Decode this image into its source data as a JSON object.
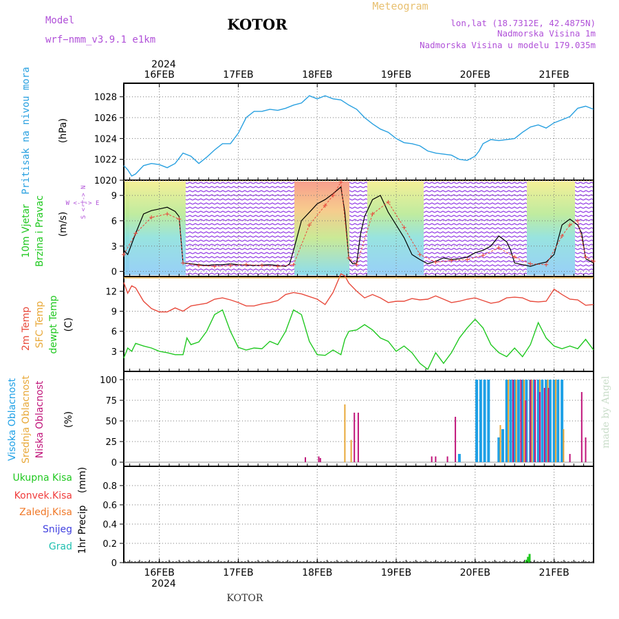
{
  "header": {
    "model_label": "Model",
    "model_name": "wrf−nmm_v3.9.1  e1km",
    "station": "KOTOR",
    "meteogram": "Meteogram",
    "lonlat": "lon,lat (18.7312E, 42.4875N)",
    "elevation": "Nadmorska Visina 1m",
    "model_elevation": "Nadmorska Visina u modelu 179.035m",
    "year_top": "2024",
    "year_bottom": "2024",
    "footer_station": "KOTOR",
    "credit": "made by Angel"
  },
  "colors": {
    "pressure": "#28a0e0",
    "temp2m": "#e84a3c",
    "sfc": "#e8a838",
    "dewpt": "#20c820",
    "high_cloud": "#1ea0e6",
    "mid_cloud": "#e8a838",
    "low_cloud": "#c0147a",
    "total_precip": "#20c820",
    "conv_precip": "#f03c3c",
    "frozen_precip": "#f07828",
    "snow": "#4040e0",
    "graupel": "#20c0b0",
    "violet_text": "#b050d8",
    "gold_text": "#e8c070"
  },
  "chart_data": {
    "type": "meteogram",
    "x_ticks": [
      "16FEB",
      "17FEB",
      "18FEB",
      "19FEB",
      "20FEB",
      "21FEB"
    ],
    "x_range_days": [
      15.55,
      21.5
    ],
    "panels": [
      {
        "id": "pressure",
        "type": "line",
        "ylabel": "Pritisak na nivou mora",
        "unit": "(hPa)",
        "ylim": [
          1020,
          1029.3
        ],
        "yticks": [
          "1020",
          "1022",
          "1024",
          "1026",
          "1028"
        ],
        "series": [
          {
            "name": "Pritisak na nivou mora",
            "x": [
              15.55,
              15.6,
              15.65,
              15.7,
              15.8,
              15.9,
              16.0,
              16.1,
              16.2,
              16.3,
              16.4,
              16.5,
              16.6,
              16.7,
              16.8,
              16.9,
              17.0,
              17.1,
              17.2,
              17.3,
              17.4,
              17.5,
              17.6,
              17.7,
              17.8,
              17.9,
              18.0,
              18.1,
              18.2,
              18.3,
              18.4,
              18.5,
              18.6,
              18.7,
              18.8,
              18.9,
              19.0,
              19.1,
              19.2,
              19.3,
              19.4,
              19.5,
              19.6,
              19.7,
              19.8,
              19.9,
              20.0,
              20.05,
              20.1,
              20.2,
              20.3,
              20.4,
              20.5,
              20.6,
              20.7,
              20.8,
              20.9,
              21.0,
              21.1,
              21.2,
              21.3,
              21.4,
              21.5
            ],
            "y": [
              1021.4,
              1021.0,
              1020.4,
              1020.6,
              1021.4,
              1021.6,
              1021.5,
              1021.2,
              1021.6,
              1022.6,
              1022.3,
              1021.6,
              1022.2,
              1022.9,
              1023.5,
              1023.5,
              1024.5,
              1026.0,
              1026.6,
              1026.6,
              1026.8,
              1026.7,
              1026.9,
              1027.2,
              1027.4,
              1028.1,
              1027.8,
              1028.1,
              1027.8,
              1027.7,
              1027.2,
              1026.8,
              1026.0,
              1025.4,
              1024.9,
              1024.6,
              1024.0,
              1023.6,
              1023.5,
              1023.3,
              1022.8,
              1022.6,
              1022.5,
              1022.4,
              1022.0,
              1021.9,
              1022.3,
              1022.8,
              1023.5,
              1023.9,
              1023.8,
              1023.9,
              1024.0,
              1024.6,
              1025.1,
              1025.3,
              1025.0,
              1025.5,
              1025.8,
              1026.1,
              1026.9,
              1027.1,
              1026.8
            ]
          }
        ]
      },
      {
        "id": "wind",
        "type": "line",
        "ylabel_1": "10m Vjetar",
        "ylabel_2": "Brzina i Pravac",
        "unit": "(m/s)",
        "compass_ns": "S <-|-> N",
        "compass_we": "W <-|-> E",
        "ylim": [
          -0.6,
          10.8
        ],
        "yticks": [
          "0",
          "3",
          "6",
          "9"
        ],
        "series": [
          {
            "x": [
              15.55,
              15.6,
              15.7,
              15.8,
              15.9,
              16.0,
              16.1,
              16.2,
              16.25,
              16.3,
              16.4,
              16.5,
              16.6,
              16.7,
              16.8,
              16.9,
              17.0,
              17.2,
              17.4,
              17.6,
              17.65,
              17.7,
              17.8,
              17.9,
              18.0,
              18.1,
              18.2,
              18.3,
              18.35,
              18.4,
              18.45,
              18.5,
              18.55,
              18.6,
              18.7,
              18.8,
              18.9,
              19.0,
              19.1,
              19.2,
              19.3,
              19.4,
              19.5,
              19.6,
              19.7,
              19.8,
              19.9,
              20.0,
              20.1,
              20.2,
              20.3,
              20.4,
              20.45,
              20.5,
              20.6,
              20.7,
              20.8,
              20.9,
              21.0,
              21.1,
              21.2,
              21.3,
              21.35,
              21.4,
              21.5
            ],
            "y": [
              2.5,
              2.0,
              4.5,
              6.8,
              7.2,
              7.4,
              7.6,
              7.1,
              6.5,
              1.0,
              0.9,
              0.8,
              0.7,
              0.8,
              0.8,
              0.9,
              0.8,
              0.7,
              0.8,
              0.6,
              0.9,
              2.5,
              6.0,
              7.0,
              8.0,
              8.5,
              9.2,
              10.0,
              7.0,
              1.5,
              0.9,
              1.0,
              4.5,
              6.5,
              8.5,
              9.0,
              7.0,
              5.5,
              4.0,
              2.0,
              1.4,
              0.9,
              1.2,
              1.6,
              1.4,
              1.5,
              1.7,
              2.2,
              2.5,
              3.0,
              4.2,
              3.5,
              2.5,
              1.0,
              0.8,
              0.6,
              0.9,
              1.1,
              2.0,
              5.5,
              6.2,
              5.5,
              4.5,
              1.5,
              1.0
            ]
          },
          {
            "x": [
              15.55,
              15.7,
              15.9,
              16.1,
              16.25,
              16.3,
              16.5,
              16.7,
              16.9,
              17.1,
              17.3,
              17.5,
              17.7,
              17.9,
              18.1,
              18.2,
              18.3,
              18.4,
              18.5,
              18.7,
              18.9,
              19.1,
              19.3,
              19.5,
              19.7,
              19.9,
              20.1,
              20.3,
              20.5,
              20.7,
              20.9,
              21.1,
              21.2,
              21.3,
              21.4,
              21.5
            ],
            "y": [
              2.0,
              4.5,
              6.4,
              6.8,
              6.2,
              1.0,
              0.7,
              0.6,
              0.7,
              0.8,
              0.7,
              0.6,
              0.8,
              5.5,
              7.8,
              9.0,
              10.6,
              1.6,
              0.8,
              6.8,
              8.2,
              5.2,
              2.0,
              1.1,
              1.3,
              1.4,
              1.9,
              2.8,
              1.7,
              0.9,
              0.8,
              4.2,
              5.5,
              6.0,
              1.7,
              1.2
            ]
          }
        ]
      },
      {
        "id": "temperature",
        "type": "line",
        "ylabel_1": "2m Temp",
        "ylabel_2": "SFC Temp",
        "ylabel_3": "dewpt Temp",
        "unit": "(C)",
        "ylim": [
          0,
          14.2
        ],
        "yticks": [
          "3",
          "6",
          "9",
          "12"
        ],
        "series": [
          {
            "name": "2m Temp",
            "x": [
              15.55,
              15.6,
              15.65,
              15.7,
              15.8,
              15.9,
              16.0,
              16.1,
              16.2,
              16.3,
              16.4,
              16.5,
              16.6,
              16.7,
              16.8,
              16.9,
              17.0,
              17.1,
              17.2,
              17.3,
              17.4,
              17.5,
              17.6,
              17.7,
              17.8,
              17.9,
              18.0,
              18.1,
              18.2,
              18.3,
              18.35,
              18.4,
              18.5,
              18.6,
              18.7,
              18.8,
              18.9,
              19.0,
              19.1,
              19.2,
              19.3,
              19.4,
              19.5,
              19.6,
              19.7,
              19.8,
              19.9,
              20.0,
              20.1,
              20.2,
              20.3,
              20.4,
              20.5,
              20.6,
              20.7,
              20.8,
              20.9,
              21.0,
              21.1,
              21.2,
              21.3,
              21.4,
              21.5
            ],
            "y": [
              13.3,
              11.7,
              12.8,
              12.5,
              10.5,
              9.4,
              8.9,
              8.9,
              9.5,
              9.0,
              9.8,
              10.0,
              10.2,
              10.8,
              11.0,
              10.7,
              10.3,
              9.8,
              9.8,
              10.1,
              10.3,
              10.6,
              11.5,
              11.8,
              11.6,
              11.2,
              10.8,
              10.0,
              11.8,
              14.6,
              14.3,
              13.2,
              12.0,
              11.0,
              11.5,
              11.0,
              10.3,
              10.5,
              10.5,
              10.9,
              10.7,
              10.8,
              11.3,
              10.8,
              10.3,
              10.5,
              10.8,
              11.0,
              10.6,
              10.2,
              10.4,
              11.0,
              11.1,
              11.0,
              10.5,
              10.4,
              10.5,
              12.3,
              11.5,
              10.8,
              10.7,
              9.9,
              10.0
            ]
          },
          {
            "name": "SFC Temp",
            "x": [
              15.55,
              21.5
            ],
            "y": [
              14.0,
              14.0
            ]
          },
          {
            "name": "dewpt Temp",
            "x": [
              15.55,
              15.6,
              15.65,
              15.7,
              15.8,
              15.9,
              16.0,
              16.1,
              16.2,
              16.3,
              16.35,
              16.4,
              16.5,
              16.6,
              16.7,
              16.8,
              16.9,
              17.0,
              17.1,
              17.2,
              17.3,
              17.4,
              17.5,
              17.6,
              17.7,
              17.8,
              17.9,
              18.0,
              18.1,
              18.2,
              18.3,
              18.35,
              18.4,
              18.5,
              18.6,
              18.7,
              18.8,
              18.9,
              19.0,
              19.1,
              19.2,
              19.3,
              19.4,
              19.5,
              19.6,
              19.7,
              19.8,
              19.9,
              20.0,
              20.1,
              20.2,
              20.3,
              20.4,
              20.5,
              20.6,
              20.7,
              20.8,
              20.9,
              21.0,
              21.1,
              21.2,
              21.3,
              21.4,
              21.5
            ],
            "y": [
              2.0,
              3.5,
              3.0,
              4.2,
              3.8,
              3.5,
              3.0,
              2.8,
              2.5,
              2.5,
              5.0,
              4.0,
              4.4,
              6.0,
              8.5,
              9.2,
              6.0,
              3.6,
              3.2,
              3.5,
              3.4,
              4.5,
              4.0,
              6.0,
              9.2,
              8.5,
              4.5,
              2.5,
              2.4,
              3.2,
              2.5,
              4.8,
              6.0,
              6.2,
              7.0,
              6.2,
              5.0,
              4.5,
              3.0,
              3.8,
              2.8,
              1.2,
              0.3,
              2.8,
              1.2,
              2.8,
              5.0,
              6.5,
              7.8,
              6.5,
              4.0,
              2.8,
              2.2,
              3.5,
              2.2,
              4.0,
              7.3,
              5.0,
              3.8,
              3.4,
              3.8,
              3.4,
              4.8,
              3.2
            ]
          }
        ]
      },
      {
        "id": "clouds",
        "type": "bar",
        "ylabel_1": "Visoka Oblacnost",
        "ylabel_2": "Srednja Oblacnost",
        "ylabel_3": "Niska Oblacnost",
        "unit": "(%)",
        "ylim": [
          -5,
          110
        ],
        "yticks": [
          "0",
          "25",
          "50",
          "75",
          "100"
        ],
        "series": [
          {
            "name": "Visoka Oblacnost",
            "x": [
              19.8,
              20.02,
              20.07,
              20.12,
              20.17,
              20.3,
              20.35,
              20.4,
              20.45,
              20.5,
              20.55,
              20.6,
              20.65,
              20.7,
              20.75,
              20.8,
              20.85,
              20.9,
              20.95,
              21.0,
              21.05,
              21.1
            ],
            "y": [
              10,
              100,
              100,
              100,
              100,
              30,
              40,
              100,
              100,
              100,
              100,
              100,
              100,
              100,
              100,
              100,
              100,
              100,
              100,
              100,
              100,
              100
            ]
          },
          {
            "name": "Srednja Oblacnost",
            "x": [
              18.35,
              18.43,
              20.32,
              20.42,
              20.52,
              20.62,
              20.72,
              20.82,
              20.92,
              21.02,
              21.12
            ],
            "y": [
              70,
              27,
              45,
              100,
              100,
              100,
              100,
              100,
              100,
              100,
              40
            ]
          },
          {
            "name": "Niska Oblacnost",
            "x": [
              17.85,
              18.02,
              18.04,
              18.47,
              18.52,
              19.45,
              19.5,
              19.65,
              19.75,
              20.48,
              20.58,
              20.64,
              20.7,
              20.76,
              20.82,
              20.88,
              20.93,
              21.2,
              21.35,
              21.4
            ],
            "y": [
              6,
              7,
              5,
              60,
              60,
              7,
              7,
              7,
              55,
              100,
              100,
              75,
              100,
              100,
              85,
              90,
              90,
              10,
              85,
              30
            ]
          }
        ]
      },
      {
        "id": "precip",
        "type": "bar",
        "ylabel_1": "1hr Precip",
        "unit": "(mm)",
        "legend": [
          "Ukupna Kisa",
          "Konvek.Kisa",
          "Zaledj.Kisa",
          "Snijeg",
          "Grad"
        ],
        "ylim": [
          0,
          1.0
        ],
        "yticks": [
          "0",
          "0.2",
          "0.4",
          "0.6",
          "0.8"
        ],
        "series": [
          {
            "name": "Ukupna Kisa",
            "x": [
              20.63,
              20.65,
              20.67,
              20.69
            ],
            "y": [
              0.01,
              0.03,
              0.06,
              0.09
            ]
          }
        ]
      }
    ]
  }
}
